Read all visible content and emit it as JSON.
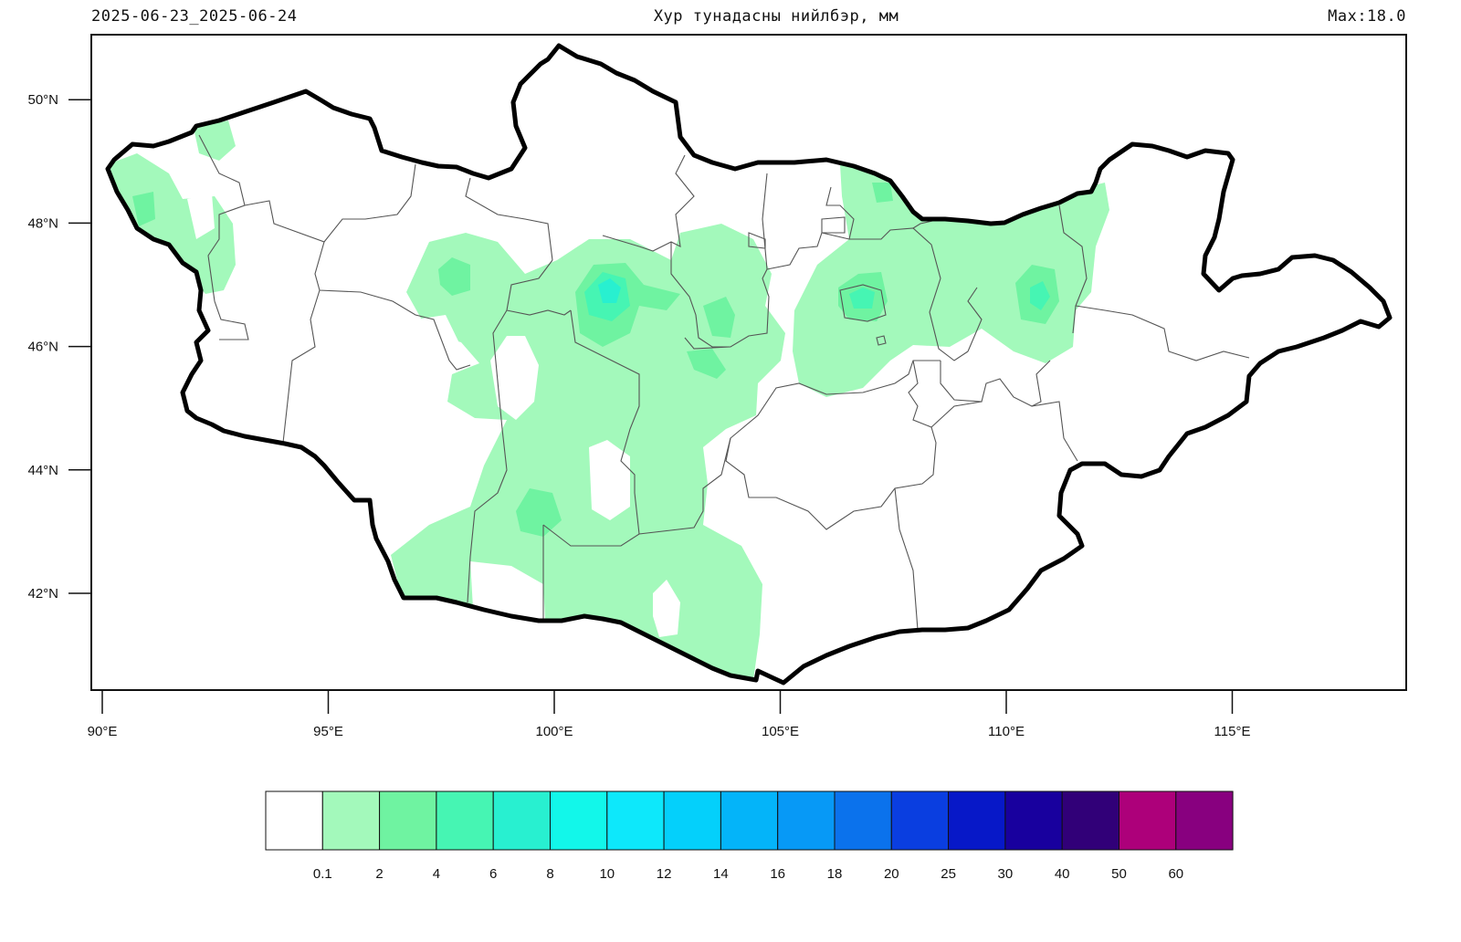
{
  "header": {
    "date_range": "2025-06-23_2025-06-24",
    "title": "Хур тунадасны нийлбэр, мм",
    "max_label": "Max:18.0"
  },
  "axes": {
    "lat_labels": [
      {
        "value": 50,
        "label": "50°N"
      },
      {
        "value": 48,
        "label": "48°N"
      },
      {
        "value": 46,
        "label": "46°N"
      },
      {
        "value": 44,
        "label": "44°N"
      },
      {
        "value": 42,
        "label": "42°N"
      }
    ],
    "lon_labels": [
      {
        "value": 90,
        "label": "90°E"
      },
      {
        "value": 95,
        "label": "95°E"
      },
      {
        "value": 100,
        "label": "100°E"
      },
      {
        "value": 105,
        "label": "105°E"
      },
      {
        "value": 110,
        "label": "110°E"
      },
      {
        "value": 115,
        "label": "115°E"
      }
    ]
  },
  "colorbar": {
    "colors": [
      "#ffffff",
      "#a3f9bb",
      "#6ff3a1",
      "#46f5b3",
      "#28f0d0",
      "#12f7ea",
      "#0de8fb",
      "#04d0fb",
      "#04b4f9",
      "#0799f6",
      "#0b72ec",
      "#0a3ee0",
      "#0718c8",
      "#18009e",
      "#310078",
      "#ad007a",
      "#88007f"
    ],
    "labels": [
      "0.1",
      "2",
      "4",
      "6",
      "8",
      "10",
      "12",
      "14",
      "16",
      "18",
      "20",
      "25",
      "30",
      "40",
      "50",
      "60"
    ]
  },
  "map_colors": {
    "light": "#a3f9bb",
    "mid": "#6ff3a1",
    "high": "#46f5b3",
    "peak": "#28f0d0",
    "border": "#000000",
    "aimag": "#555555"
  }
}
